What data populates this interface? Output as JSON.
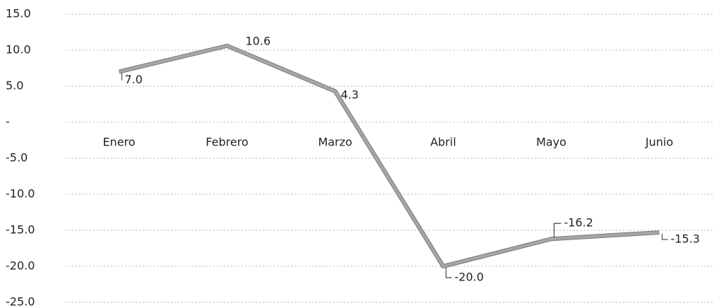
{
  "chart_data": {
    "type": "line",
    "categories": [
      "Enero",
      "Febrero",
      "Marzo",
      "Abril",
      "Mayo",
      "Junio"
    ],
    "values": [
      7.0,
      10.6,
      4.3,
      -20.0,
      -16.2,
      -15.3
    ],
    "value_labels": [
      "7.0",
      "10.6",
      "4.3",
      "-20.0",
      "-16.2",
      "-15.3"
    ],
    "color": "#a6a6a6",
    "ylim": [
      -25,
      15
    ],
    "yticks": [
      {
        "value": 15,
        "label": "15.0"
      },
      {
        "value": 10,
        "label": "10.0"
      },
      {
        "value": 5,
        "label": "5.0"
      },
      {
        "value": 0,
        "label": "-"
      },
      {
        "value": -5,
        "label": "-5.0"
      },
      {
        "value": -10,
        "label": "-10.0"
      },
      {
        "value": -15,
        "label": "-15.0"
      },
      {
        "value": -20,
        "label": "-20.0"
      },
      {
        "value": -25,
        "label": "-25.0"
      }
    ],
    "grid": true
  }
}
